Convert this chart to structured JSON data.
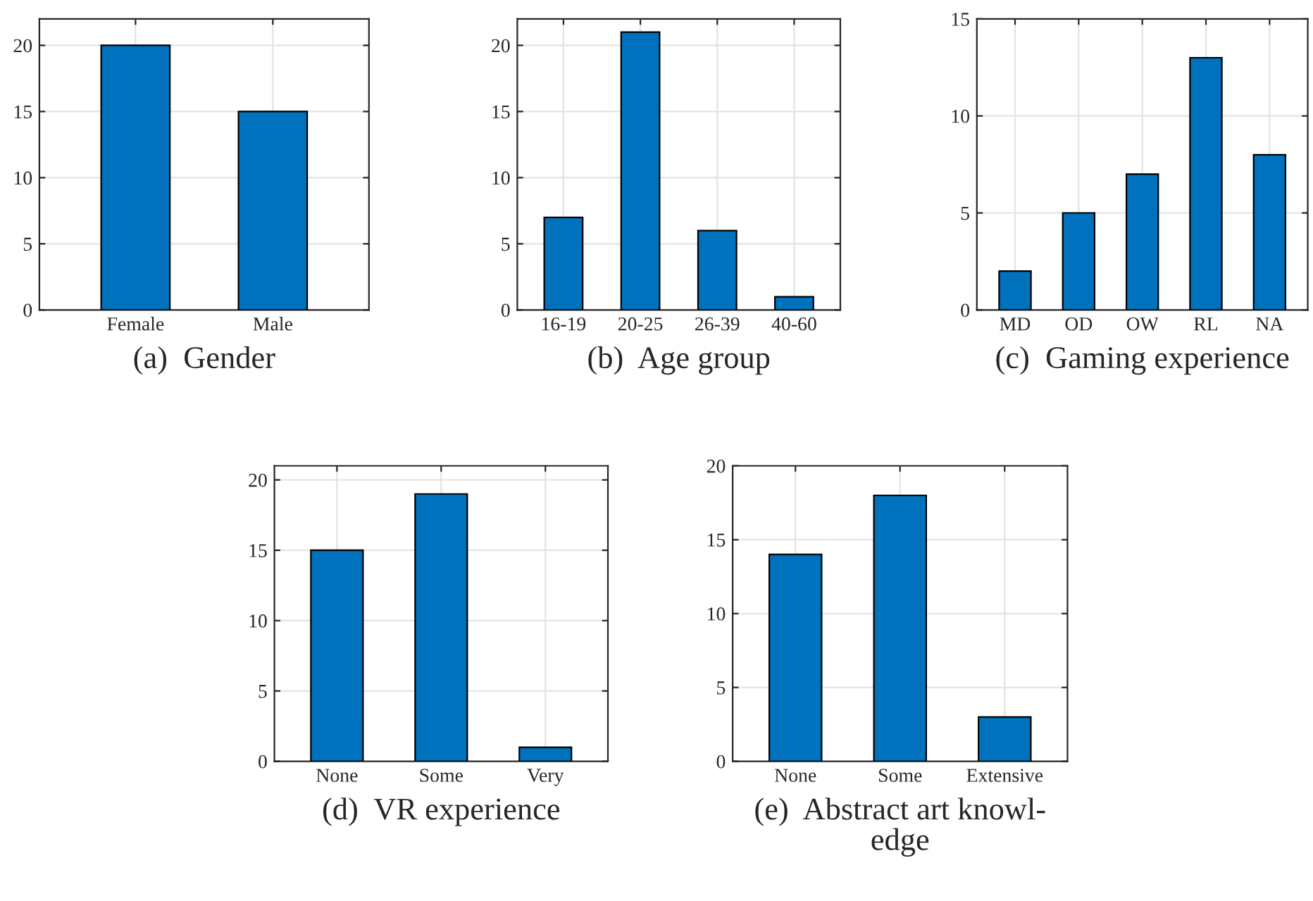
{
  "chart_data": [
    {
      "type": "bar",
      "xlabel": "(a)  Gender",
      "categories": [
        "Female",
        "Male"
      ],
      "values": [
        20,
        15
      ],
      "color": "#0072bd",
      "ylim": [
        0,
        22
      ],
      "yticks": [
        0,
        5,
        10,
        15,
        20
      ],
      "grid": true
    },
    {
      "type": "bar",
      "xlabel": "(b)  Age group",
      "categories": [
        "16-19",
        "20-25",
        "26-39",
        "40-60"
      ],
      "values": [
        7,
        21,
        6,
        1
      ],
      "color": "#0072bd",
      "ylim": [
        0,
        22
      ],
      "yticks": [
        0,
        5,
        10,
        15,
        20
      ],
      "grid": true
    },
    {
      "type": "bar",
      "xlabel": "(c)  Gaming experience",
      "categories": [
        "MD",
        "OD",
        "OW",
        "RL",
        "NA"
      ],
      "values": [
        2,
        5,
        7,
        13,
        8
      ],
      "color": "#0072bd",
      "ylim": [
        0,
        15
      ],
      "yticks": [
        0,
        5,
        10,
        15
      ],
      "grid": true
    },
    {
      "type": "bar",
      "xlabel": "(d)  VR experience",
      "categories": [
        "None",
        "Some",
        "Very"
      ],
      "values": [
        15,
        19,
        1
      ],
      "color": "#0072bd",
      "ylim": [
        0,
        21
      ],
      "yticks": [
        0,
        5,
        10,
        15,
        20
      ],
      "grid": true
    },
    {
      "type": "bar",
      "xlabel": "(e)  Abstract art knowl-\nedge",
      "categories": [
        "None",
        "Some",
        "Extensive"
      ],
      "values": [
        14,
        18,
        3
      ],
      "color": "#0072bd",
      "ylim": [
        0,
        20
      ],
      "yticks": [
        0,
        5,
        10,
        15,
        20
      ],
      "grid": true
    }
  ]
}
